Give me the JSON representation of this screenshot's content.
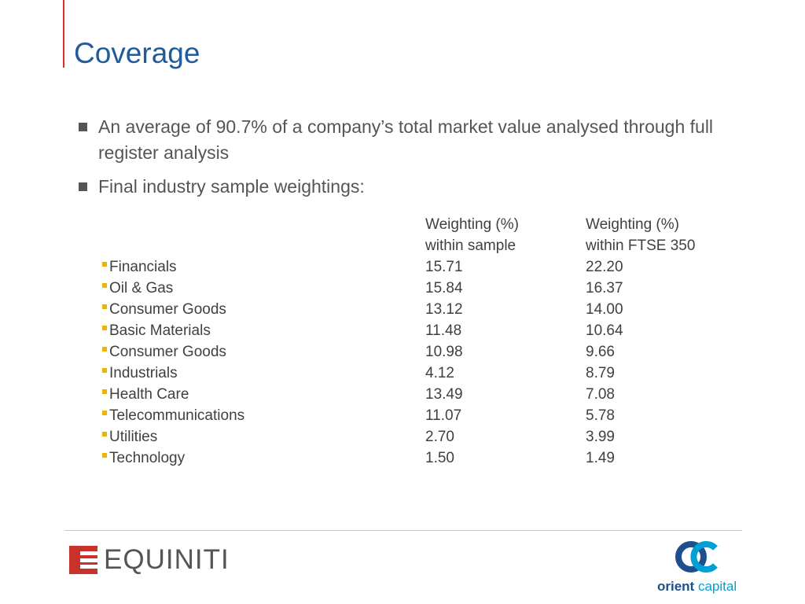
{
  "slide": {
    "title": "Coverage",
    "bullets": [
      "An average of 90.7% of a company’s total market value analysed through full register analysis",
      "Final industry sample weightings:"
    ]
  },
  "table": {
    "headers": {
      "col_a_line1": "Weighting (%)",
      "col_a_line2": "within sample",
      "col_b_line1": "Weighting (%)",
      "col_b_line2": "within FTSE 350"
    },
    "rows": [
      {
        "name": "Financials",
        "sample": "15.71",
        "ftse": "22.20"
      },
      {
        "name": "Oil & Gas",
        "sample": "15.84",
        "ftse": "16.37"
      },
      {
        "name": "Consumer Goods",
        "sample": "13.12",
        "ftse": "14.00"
      },
      {
        "name": "Basic Materials",
        "sample": "11.48",
        "ftse": "10.64"
      },
      {
        "name": "Consumer Goods",
        "sample": "10.98",
        "ftse": "9.66"
      },
      {
        "name": "Industrials",
        "sample": "4.12",
        "ftse": "8.79"
      },
      {
        "name": "Health Care",
        "sample": "13.49",
        "ftse": "7.08"
      },
      {
        "name": "Telecommunications",
        "sample": "11.07",
        "ftse": "5.78"
      },
      {
        "name": "Utilities",
        "sample": "2.70",
        "ftse": "3.99"
      },
      {
        "name": "Technology",
        "sample": "1.50",
        "ftse": "1.49"
      }
    ]
  },
  "footer": {
    "left_logo_text": "EQUINITI",
    "right_logo_word1": "orient",
    "right_logo_word2": "capital"
  },
  "colors": {
    "title": "#1f5c99",
    "accent_red": "#d6312c",
    "bullet_yellow": "#f0b400",
    "oc_dark_blue": "#1e4e8c",
    "oc_light_blue": "#00a0d6"
  },
  "icons": {
    "bullet": "square-bullet-icon",
    "table_bullet": "yellow-square-bullet-icon",
    "left_logo": "equiniti-logo",
    "right_logo": "orient-capital-logo"
  }
}
